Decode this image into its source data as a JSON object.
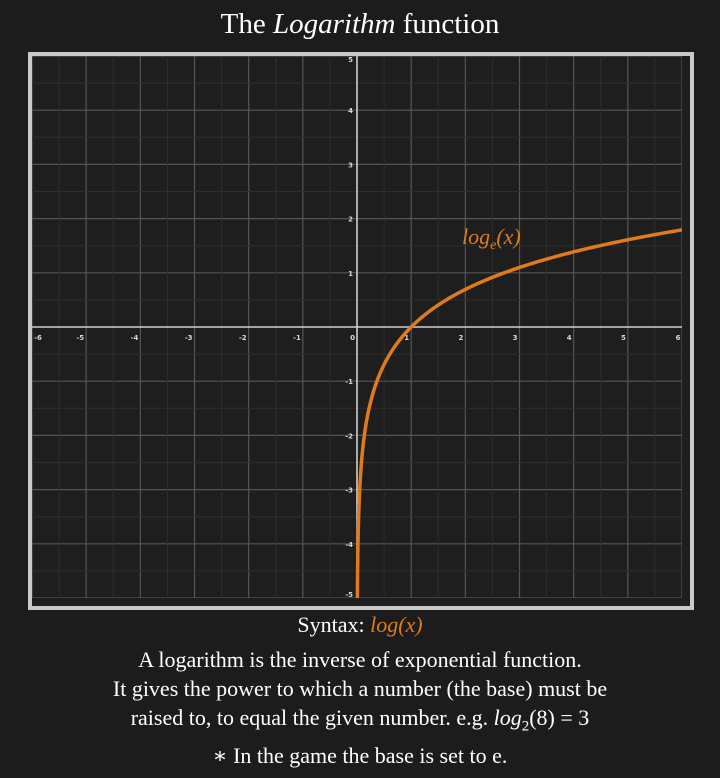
{
  "title": {
    "prefix": "The ",
    "emph": "Logarithm",
    "suffix": " function"
  },
  "chart_data": {
    "type": "line",
    "function": "log_e(x)",
    "series": [
      {
        "name": "log_e(x)",
        "color": "#e07b1d",
        "x": [
          0.0067,
          0.02,
          0.05,
          0.1,
          0.2,
          0.3,
          0.5,
          0.75,
          1,
          1.5,
          2,
          2.5,
          3,
          3.5,
          4,
          4.5,
          5,
          5.5,
          6
        ],
        "y": [
          -5,
          -3.91,
          -3.0,
          -2.3,
          -1.61,
          -1.2,
          -0.69,
          -0.29,
          0,
          0.41,
          0.69,
          0.92,
          1.1,
          1.25,
          1.39,
          1.5,
          1.61,
          1.7,
          1.79
        ]
      }
    ],
    "curve_label": {
      "base": "log",
      "sub": "e",
      "arg": "(x)"
    },
    "xlim": [
      -6,
      6
    ],
    "ylim": [
      -5,
      5
    ],
    "x_ticks": [
      "-6",
      "-5",
      "-4",
      "-3",
      "-2",
      "-1",
      "0",
      "1",
      "2",
      "3",
      "4",
      "5",
      "6"
    ],
    "y_ticks": [
      "-5",
      "-4",
      "-3",
      "-2",
      "-1",
      "1",
      "2",
      "3",
      "4",
      "5"
    ],
    "grid": true,
    "colors": {
      "background": "#1e1e1e",
      "grid": "#555555",
      "axis": "#cfcfcf",
      "curve": "#e07b1d",
      "frame": "#c9c9c9"
    }
  },
  "syntax": {
    "label": "Syntax: ",
    "value": "log(x)"
  },
  "description": {
    "line1": "A logarithm is the inverse of exponential function.",
    "line2": "It gives the power to which a number (the base) must be",
    "line3": "raised to, to equal the given number. e.g. ",
    "example_base": "log",
    "example_sub": "2",
    "example_rest": "(8) = 3"
  },
  "note": {
    "star": "∗",
    "text": " In the game the base is set to e."
  }
}
